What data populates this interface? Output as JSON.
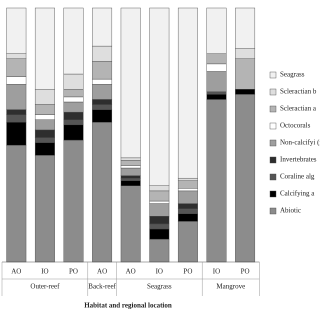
{
  "chart_data": {
    "type": "stacked-bar",
    "x_label": "Habitat and regional location",
    "groups": [
      {
        "label": "Outer-reef",
        "categories": [
          "AO",
          "IO",
          "PO"
        ]
      },
      {
        "label": "Back-reef",
        "categories": [
          "AO"
        ]
      },
      {
        "label": "Seagrass",
        "categories": [
          "AO",
          "IO",
          "PO"
        ]
      },
      {
        "label": "Mangrove",
        "categories": [
          "IO",
          "PO"
        ]
      }
    ],
    "ylim": [
      0,
      100
    ],
    "series": [
      {
        "name": "Abiotic",
        "color": "#8c8c8c",
        "values": [
          46,
          42,
          48,
          55,
          30,
          9,
          16,
          64,
          66
        ]
      },
      {
        "name": "Calcifying a",
        "color": "#000000",
        "values": [
          9,
          5,
          6,
          5,
          2,
          4,
          3,
          2,
          2
        ]
      },
      {
        "name": "Coraline alg",
        "color": "#555555",
        "values": [
          3,
          2,
          2,
          2,
          1,
          2,
          2,
          1,
          0
        ]
      },
      {
        "name": "Invertebrates",
        "color": "#2e2e2e",
        "values": [
          2,
          3,
          3,
          2,
          1,
          3,
          2,
          0,
          0
        ]
      },
      {
        "name": "Non-calcifyi (macro & tur",
        "color": "#9e9e9e",
        "values": [
          10,
          4,
          4,
          6,
          3,
          5,
          5,
          8,
          0
        ]
      },
      {
        "name": "Octocorals",
        "color": "#ffffff",
        "values": [
          3,
          2,
          2,
          2,
          1,
          1,
          1,
          3,
          0
        ]
      },
      {
        "name": "Scleractian a",
        "color": "#b4b4b4",
        "values": [
          7,
          4,
          3,
          7,
          2,
          4,
          3,
          4,
          12
        ]
      },
      {
        "name": "Scleractian b",
        "color": "#dedede",
        "values": [
          2,
          6,
          6,
          6,
          1,
          2,
          1,
          0,
          4
        ]
      },
      {
        "name": "Seagrass",
        "color": "#f1f1f1",
        "values": [
          18,
          32,
          26,
          15,
          59,
          70,
          67,
          18,
          16
        ]
      }
    ]
  }
}
